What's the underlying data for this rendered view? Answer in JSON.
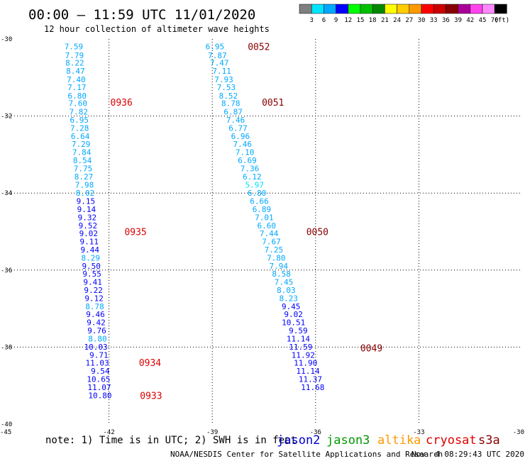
{
  "header": {
    "title": "00:00 – 11:59 UTC 11/01/2020",
    "subtitle": "12 hour collection of altimeter wave heights"
  },
  "color_scale": {
    "colors": [
      "#7f7f7f",
      "#00e5ff",
      "#00a8ff",
      "#0000ff",
      "#00ff00",
      "#00c000",
      "#008800",
      "#ffff00",
      "#ffcc00",
      "#ff9900",
      "#ff0000",
      "#cc0000",
      "#880000",
      "#aa0099",
      "#ff44ee",
      "#ff88ff",
      "#000000"
    ],
    "labels": [
      "3",
      "6",
      "9",
      "12",
      "15",
      "18",
      "21",
      "24",
      "27",
      "30",
      "33",
      "36",
      "39",
      "42",
      "45",
      "70"
    ],
    "unit": "(ft)"
  },
  "footer": {
    "note": "note: 1) Time is in UTC; 2) SWH is in feet",
    "missions": [
      {
        "name": "jason2",
        "color": "#0000cc"
      },
      {
        "name": "jason3",
        "color": "#009900"
      },
      {
        "name": "altika",
        "color": "#ff9900"
      },
      {
        "name": "cryosat",
        "color": "#dd0000"
      },
      {
        "name": "s3a",
        "color": "#880000"
      }
    ],
    "credit": "NOAA/NESDIS Center for Satellite Applications and Research",
    "timestamp": "Nov  4 08:29:43 UTC 2020"
  },
  "chart_data": {
    "type": "scatter",
    "title": "00:00 – 11:59 UTC 11/01/2020",
    "xlim": [
      -45,
      -30
    ],
    "ylim": [
      -40,
      -30
    ],
    "xticks": [
      -45,
      -42,
      -39,
      -36,
      -33,
      -30
    ],
    "yticks": [
      -30,
      -32,
      -34,
      -36,
      -38,
      -40
    ],
    "xtick_labels": [
      "-45",
      "-42",
      "-39",
      "-36",
      "-33",
      "-30"
    ],
    "ytick_labels": [
      "-30",
      "-32",
      "-34",
      "-36",
      "-38",
      "-40"
    ],
    "grid": true,
    "tracks": [
      {
        "mission": "cryosat",
        "color": "#dd0000",
        "values": [
          {
            "x": -42.75,
            "y": -30.19,
            "swh": "7.59",
            "c": "#00a8ff"
          },
          {
            "x": -42.73,
            "y": -30.42,
            "swh": "7.79",
            "c": "#00a8ff"
          },
          {
            "x": -42.72,
            "y": -30.62,
            "swh": "8.22",
            "c": "#00a8ff"
          },
          {
            "x": -42.7,
            "y": -30.83,
            "swh": "8.47",
            "c": "#00a8ff"
          },
          {
            "x": -42.68,
            "y": -31.05,
            "swh": "7.40",
            "c": "#00a8ff"
          },
          {
            "x": -42.66,
            "y": -31.25,
            "swh": "7.17",
            "c": "#00a8ff"
          },
          {
            "x": -42.65,
            "y": -31.47,
            "swh": "6.80",
            "c": "#00a8ff"
          },
          {
            "x": -42.63,
            "y": -31.67,
            "swh": "7.60",
            "c": "#00a8ff"
          },
          {
            "x": -42.61,
            "y": -31.89,
            "swh": "7.82",
            "c": "#00a8ff"
          },
          {
            "x": -42.59,
            "y": -32.1,
            "swh": "6.95",
            "c": "#00a8ff"
          },
          {
            "x": -42.58,
            "y": -32.31,
            "swh": "7.28",
            "c": "#00a8ff"
          },
          {
            "x": -42.56,
            "y": -32.52,
            "swh": "6.64",
            "c": "#00a8ff"
          },
          {
            "x": -42.54,
            "y": -32.73,
            "swh": "7.29",
            "c": "#00a8ff"
          },
          {
            "x": -42.52,
            "y": -32.94,
            "swh": "7.84",
            "c": "#00a8ff"
          },
          {
            "x": -42.5,
            "y": -33.15,
            "swh": "8.54",
            "c": "#00a8ff"
          },
          {
            "x": -42.48,
            "y": -33.36,
            "swh": "7.75",
            "c": "#00a8ff"
          },
          {
            "x": -42.46,
            "y": -33.57,
            "swh": "8.27",
            "c": "#00a8ff"
          },
          {
            "x": -42.44,
            "y": -33.78,
            "swh": "7.98",
            "c": "#00a8ff"
          },
          {
            "x": -42.42,
            "y": -34.0,
            "swh": "8.02",
            "c": "#00a8ff"
          },
          {
            "x": -42.4,
            "y": -34.21,
            "swh": "9.15",
            "c": "#0000ff"
          },
          {
            "x": -42.38,
            "y": -34.42,
            "swh": "9.14",
            "c": "#0000ff"
          },
          {
            "x": -42.36,
            "y": -34.63,
            "swh": "9.32",
            "c": "#0000ff"
          },
          {
            "x": -42.34,
            "y": -34.84,
            "swh": "9.52",
            "c": "#0000ff"
          },
          {
            "x": -42.32,
            "y": -35.05,
            "swh": "9.02",
            "c": "#0000ff"
          },
          {
            "x": -42.3,
            "y": -35.26,
            "swh": "9.11",
            "c": "#0000ff"
          },
          {
            "x": -42.28,
            "y": -35.47,
            "swh": "9.44",
            "c": "#0000ff"
          },
          {
            "x": -42.26,
            "y": -35.68,
            "swh": "8.29",
            "c": "#00a8ff"
          },
          {
            "x": -42.24,
            "y": -35.89,
            "swh": "9.50",
            "c": "#0000ff"
          },
          {
            "x": -42.22,
            "y": -36.1,
            "swh": "9.55",
            "c": "#0000ff"
          },
          {
            "x": -42.2,
            "y": -36.31,
            "swh": "9.41",
            "c": "#0000ff"
          },
          {
            "x": -42.18,
            "y": -36.52,
            "swh": "9.22",
            "c": "#0000ff"
          },
          {
            "x": -42.16,
            "y": -36.73,
            "swh": "9.12",
            "c": "#0000ff"
          },
          {
            "x": -42.14,
            "y": -36.94,
            "swh": "8.78",
            "c": "#00a8ff"
          },
          {
            "x": -42.12,
            "y": -37.15,
            "swh": "9.46",
            "c": "#0000ff"
          },
          {
            "x": -42.1,
            "y": -37.36,
            "swh": "9.42",
            "c": "#0000ff"
          },
          {
            "x": -42.08,
            "y": -37.57,
            "swh": "9.76",
            "c": "#0000ff"
          },
          {
            "x": -42.06,
            "y": -37.78,
            "swh": "8.80",
            "c": "#00a8ff"
          },
          {
            "x": -42.04,
            "y": -37.99,
            "swh": "10.03",
            "c": "#0000ff"
          },
          {
            "x": -42.02,
            "y": -38.2,
            "swh": "9.71",
            "c": "#0000ff"
          },
          {
            "x": -42.0,
            "y": -38.41,
            "swh": "11.03",
            "c": "#0000ff"
          },
          {
            "x": -41.98,
            "y": -38.62,
            "swh": "9.54",
            "c": "#0000ff"
          },
          {
            "x": -41.96,
            "y": -38.83,
            "swh": "10.65",
            "c": "#0000ff"
          },
          {
            "x": -41.94,
            "y": -39.04,
            "swh": "11.07",
            "c": "#0000ff"
          },
          {
            "x": -41.92,
            "y": -39.25,
            "swh": "10.80",
            "c": "#0000ff"
          }
        ],
        "time_labels": [
          {
            "text": "0936",
            "x": -41.96,
            "y": -31.64
          },
          {
            "text": "0935",
            "x": -41.55,
            "y": -35.0
          },
          {
            "text": "0934",
            "x": -41.13,
            "y": -38.4
          },
          {
            "text": "0933",
            "x": -41.1,
            "y": -39.25
          }
        ]
      },
      {
        "mission": "s3a",
        "color": "#880000",
        "values": [
          {
            "x": -38.65,
            "y": -30.19,
            "swh": "6.95",
            "c": "#00a8ff"
          },
          {
            "x": -38.58,
            "y": -30.42,
            "swh": "7.87",
            "c": "#00a8ff"
          },
          {
            "x": -38.52,
            "y": -30.62,
            "swh": "7.47",
            "c": "#00a8ff"
          },
          {
            "x": -38.45,
            "y": -30.83,
            "swh": "7.11",
            "c": "#00a8ff"
          },
          {
            "x": -38.39,
            "y": -31.05,
            "swh": "7.93",
            "c": "#00a8ff"
          },
          {
            "x": -38.32,
            "y": -31.25,
            "swh": "7.53",
            "c": "#00a8ff"
          },
          {
            "x": -38.26,
            "y": -31.47,
            "swh": "8.52",
            "c": "#00a8ff"
          },
          {
            "x": -38.19,
            "y": -31.67,
            "swh": "8.78",
            "c": "#00a8ff"
          },
          {
            "x": -38.12,
            "y": -31.89,
            "swh": "6.87",
            "c": "#00a8ff"
          },
          {
            "x": -38.05,
            "y": -32.1,
            "swh": "7.46",
            "c": "#00a8ff"
          },
          {
            "x": -37.98,
            "y": -32.31,
            "swh": "6.77",
            "c": "#00a8ff"
          },
          {
            "x": -37.91,
            "y": -32.52,
            "swh": "6.96",
            "c": "#00a8ff"
          },
          {
            "x": -37.85,
            "y": -32.73,
            "swh": "7.46",
            "c": "#00a8ff"
          },
          {
            "x": -37.78,
            "y": -32.94,
            "swh": "7.10",
            "c": "#00a8ff"
          },
          {
            "x": -37.71,
            "y": -33.15,
            "swh": "6.69",
            "c": "#00a8ff"
          },
          {
            "x": -37.64,
            "y": -33.36,
            "swh": "7.36",
            "c": "#00a8ff"
          },
          {
            "x": -37.57,
            "y": -33.57,
            "swh": "6.12",
            "c": "#00a8ff"
          },
          {
            "x": -37.5,
            "y": -33.78,
            "swh": "5.97",
            "c": "#00e5ff"
          },
          {
            "x": -37.43,
            "y": -34.0,
            "swh": "6.80",
            "c": "#00a8ff"
          },
          {
            "x": -37.36,
            "y": -34.21,
            "swh": "6.66",
            "c": "#00a8ff"
          },
          {
            "x": -37.29,
            "y": -34.42,
            "swh": "6.89",
            "c": "#00a8ff"
          },
          {
            "x": -37.22,
            "y": -34.63,
            "swh": "7.01",
            "c": "#00a8ff"
          },
          {
            "x": -37.15,
            "y": -34.84,
            "swh": "6.60",
            "c": "#00a8ff"
          },
          {
            "x": -37.08,
            "y": -35.05,
            "swh": "7.44",
            "c": "#00a8ff"
          },
          {
            "x": -37.01,
            "y": -35.26,
            "swh": "7.67",
            "c": "#00a8ff"
          },
          {
            "x": -36.94,
            "y": -35.47,
            "swh": "7.25",
            "c": "#00a8ff"
          },
          {
            "x": -36.87,
            "y": -35.68,
            "swh": "7.80",
            "c": "#00a8ff"
          },
          {
            "x": -36.8,
            "y": -35.89,
            "swh": "7.94",
            "c": "#00a8ff"
          },
          {
            "x": -36.72,
            "y": -36.1,
            "swh": "8.58",
            "c": "#00a8ff"
          },
          {
            "x": -36.65,
            "y": -36.31,
            "swh": "7.45",
            "c": "#00a8ff"
          },
          {
            "x": -36.58,
            "y": -36.52,
            "swh": "8.03",
            "c": "#00a8ff"
          },
          {
            "x": -36.51,
            "y": -36.73,
            "swh": "8.23",
            "c": "#00a8ff"
          },
          {
            "x": -36.44,
            "y": -36.94,
            "swh": "9.45",
            "c": "#0000ff"
          },
          {
            "x": -36.37,
            "y": -37.15,
            "swh": "9.02",
            "c": "#0000ff"
          },
          {
            "x": -36.3,
            "y": -37.36,
            "swh": "10.51",
            "c": "#0000ff"
          },
          {
            "x": -36.23,
            "y": -37.57,
            "swh": "9.59",
            "c": "#0000ff"
          },
          {
            "x": -36.16,
            "y": -37.78,
            "swh": "11.14",
            "c": "#0000ff"
          },
          {
            "x": -36.09,
            "y": -37.99,
            "swh": "11.59",
            "c": "#0000ff"
          },
          {
            "x": -36.02,
            "y": -38.2,
            "swh": "11.92",
            "c": "#0000ff"
          },
          {
            "x": -35.95,
            "y": -38.41,
            "swh": "11.90",
            "c": "#0000ff"
          },
          {
            "x": -35.88,
            "y": -38.62,
            "swh": "11.14",
            "c": "#0000ff"
          },
          {
            "x": -35.81,
            "y": -38.83,
            "swh": "11.37",
            "c": "#0000ff"
          },
          {
            "x": -35.74,
            "y": -39.04,
            "swh": "11.68",
            "c": "#0000ff"
          }
        ],
        "time_labels": [
          {
            "text": "0052",
            "x": -37.97,
            "y": -30.19
          },
          {
            "text": "0051",
            "x": -37.56,
            "y": -31.64
          },
          {
            "text": "0050",
            "x": -36.27,
            "y": -35.0
          },
          {
            "text": "0049",
            "x": -34.7,
            "y": -38.02
          }
        ]
      }
    ]
  }
}
